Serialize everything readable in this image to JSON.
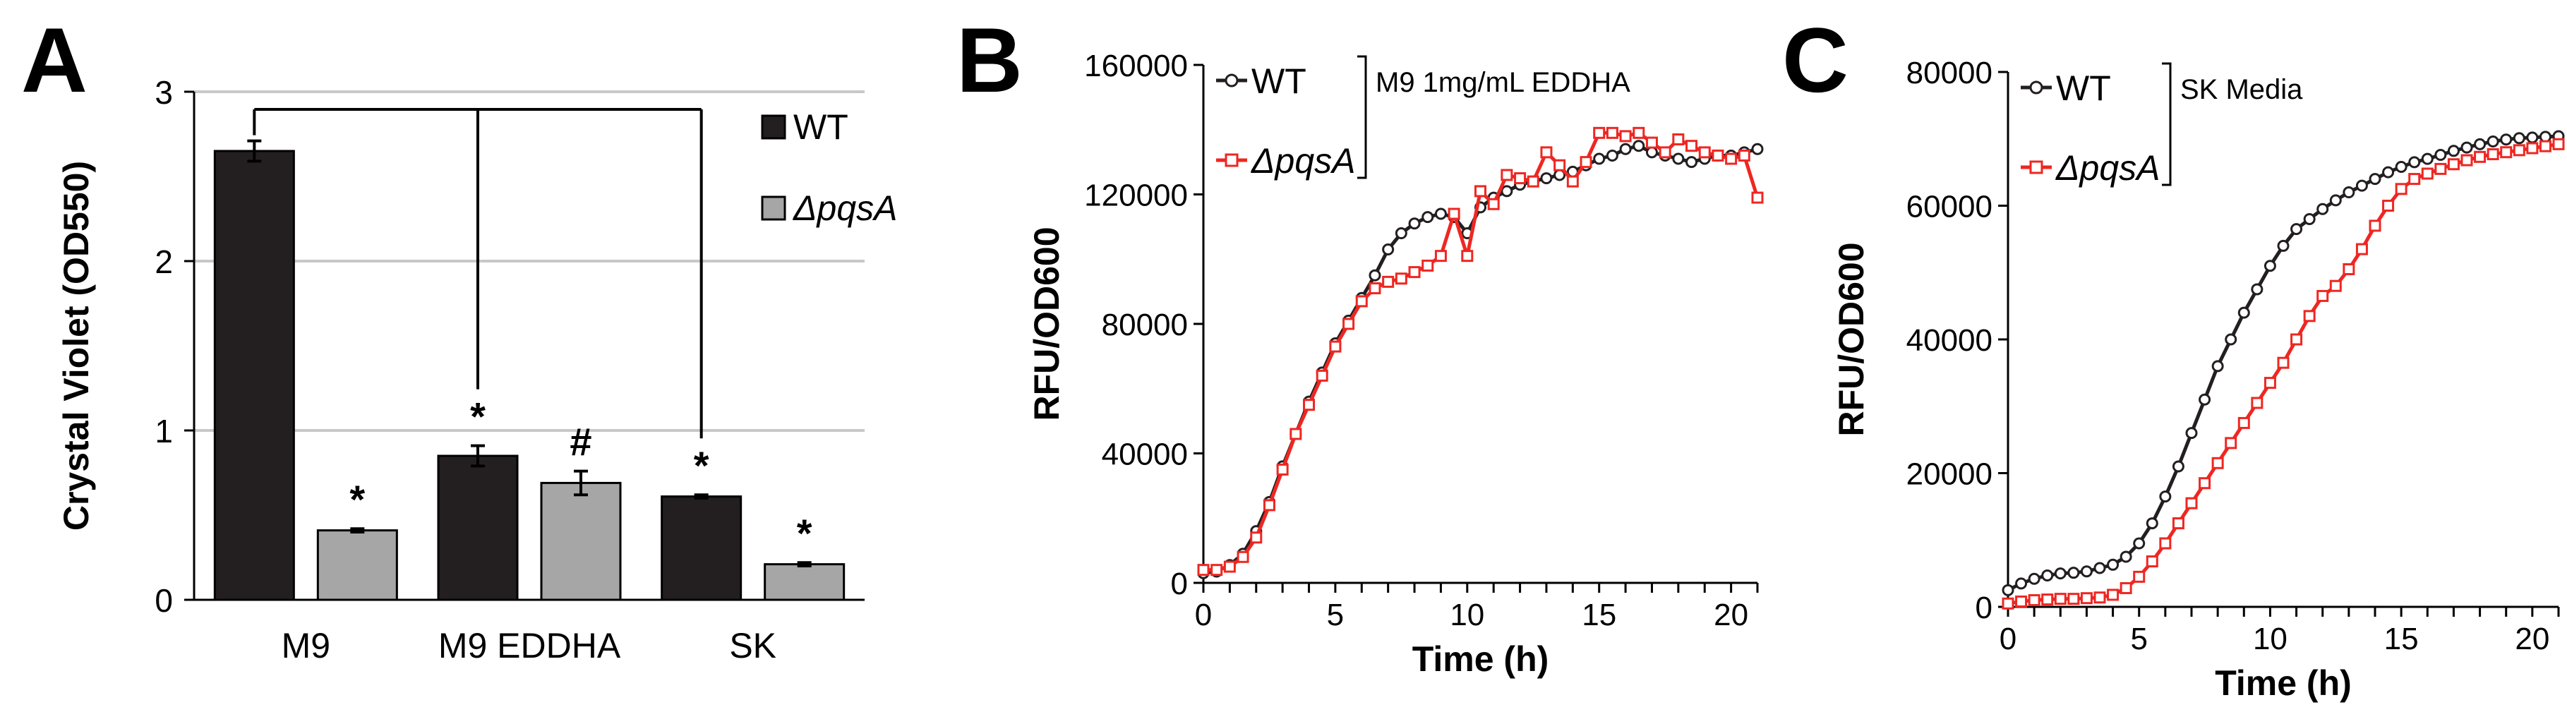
{
  "colors": {
    "wt_bar": "#231f20",
    "pqsa_bar": "#a6a6a6",
    "wt_line": "#231f20",
    "pqsa_line": "#ee2722",
    "gridline": "#c8c8c8",
    "axis": "#000000"
  },
  "chart_data": [
    {
      "panel": "A",
      "type": "bar",
      "ylabel": "Crystal Violet (OD550)",
      "xlabel": "",
      "ylim": [
        0,
        3
      ],
      "yticks": [
        0,
        1,
        2,
        3
      ],
      "ytick_labels": [
        "0",
        "1",
        "2",
        "3"
      ],
      "grid": true,
      "categories": [
        "M9",
        "M9 EDDHA",
        "SK"
      ],
      "series": [
        {
          "name": "WT",
          "values": [
            2.65,
            0.85,
            0.61
          ],
          "errors": [
            0.06,
            0.06,
            0.01
          ]
        },
        {
          "name": "ΔpqsA",
          "values": [
            0.41,
            0.69,
            0.21
          ],
          "errors": [
            0.01,
            0.07,
            0.01
          ]
        }
      ],
      "annotations": [
        {
          "series": 1,
          "category": 0,
          "text": "*"
        },
        {
          "series": 0,
          "category": 1,
          "text": "*"
        },
        {
          "series": 1,
          "category": 1,
          "text": "#"
        },
        {
          "series": 0,
          "category": 2,
          "text": "*"
        },
        {
          "series": 1,
          "category": 2,
          "text": "*"
        }
      ],
      "comparison_bracket": {
        "from": {
          "series": 0,
          "category": 0
        },
        "to": [
          {
            "series": 0,
            "category": 1
          },
          {
            "series": 0,
            "category": 2
          }
        ]
      },
      "legend": [
        "WT",
        "ΔpqsA"
      ],
      "legend_position": "top-right"
    },
    {
      "panel": "B",
      "type": "line",
      "xlabel": "Time (h)",
      "ylabel": "RFU/OD600",
      "xlim": [
        0,
        21
      ],
      "ylim": [
        0,
        160000
      ],
      "xticks": [
        0,
        5,
        10,
        15,
        20
      ],
      "xtick_labels": [
        "0",
        "5",
        "10",
        "15",
        "20"
      ],
      "yticks": [
        0,
        40000,
        80000,
        120000,
        160000
      ],
      "ytick_labels": [
        "0",
        "40000",
        "80000",
        "120000",
        "160000"
      ],
      "legend_note": "M9 1mg/mL EDDHA",
      "legend_position": "top-left",
      "series": [
        {
          "name": "WT",
          "x": [
            0,
            0.5,
            1,
            1.5,
            2,
            2.5,
            3,
            3.5,
            4,
            4.5,
            5,
            5.5,
            6,
            6.5,
            7,
            7.5,
            8,
            8.5,
            9,
            9.5,
            10,
            10.5,
            11,
            11.5,
            12,
            12.5,
            13,
            13.5,
            14,
            14.5,
            15,
            15.5,
            16,
            16.5,
            17,
            17.5,
            18,
            18.5,
            19,
            19.5,
            20,
            20.5,
            21
          ],
          "y": [
            3000,
            3500,
            5500,
            9000,
            16000,
            25000,
            36000,
            46000,
            56000,
            65000,
            74000,
            81000,
            88000,
            95000,
            103000,
            108000,
            111000,
            113000,
            114000,
            113000,
            108000,
            116000,
            119000,
            121000,
            123000,
            124000,
            125000,
            126000,
            127000,
            129000,
            131000,
            132000,
            134000,
            135000,
            133000,
            132000,
            131000,
            130000,
            131000,
            132000,
            132000,
            133000,
            134000
          ]
        },
        {
          "name": "ΔpqsA",
          "x": [
            0,
            0.5,
            1,
            1.5,
            2,
            2.5,
            3,
            3.5,
            4,
            4.5,
            5,
            5.5,
            6,
            6.5,
            7,
            7.5,
            8,
            8.5,
            9,
            9.5,
            10,
            10.5,
            11,
            11.5,
            12,
            12.5,
            13,
            13.5,
            14,
            14.5,
            15,
            15.5,
            16,
            16.5,
            17,
            17.5,
            18,
            18.5,
            19,
            19.5,
            20,
            20.5,
            21
          ],
          "y": [
            4000,
            4000,
            5000,
            8000,
            14000,
            24000,
            35000,
            46000,
            55000,
            64000,
            73000,
            80000,
            87000,
            91000,
            93000,
            94000,
            96000,
            98000,
            101000,
            114000,
            101000,
            121000,
            117000,
            126000,
            125000,
            124000,
            133000,
            129000,
            124000,
            130000,
            139000,
            139000,
            138000,
            139000,
            136000,
            133000,
            137000,
            135000,
            133000,
            132000,
            131000,
            132000,
            119000
          ]
        }
      ]
    },
    {
      "panel": "C",
      "type": "line",
      "xlabel": "Time (h)",
      "ylabel": "RFU/OD600",
      "xlim": [
        0,
        21
      ],
      "ylim": [
        0,
        80000
      ],
      "xticks": [
        0,
        5,
        10,
        15,
        20
      ],
      "xtick_labels": [
        "0",
        "5",
        "10",
        "15",
        "20"
      ],
      "yticks": [
        0,
        20000,
        40000,
        60000,
        80000
      ],
      "ytick_labels": [
        "0",
        "20000",
        "40000",
        "60000",
        "80000"
      ],
      "legend_note": "SK Media",
      "legend_position": "top-left",
      "series": [
        {
          "name": "WT",
          "x": [
            0,
            0.5,
            1,
            1.5,
            2,
            2.5,
            3,
            3.5,
            4,
            4.5,
            5,
            5.5,
            6,
            6.5,
            7,
            7.5,
            8,
            8.5,
            9,
            9.5,
            10,
            10.5,
            11,
            11.5,
            12,
            12.5,
            13,
            13.5,
            14,
            14.5,
            15,
            15.5,
            16,
            16.5,
            17,
            17.5,
            18,
            18.5,
            19,
            19.5,
            20,
            20.5,
            21
          ],
          "y": [
            2500,
            3500,
            4200,
            4700,
            5000,
            5100,
            5300,
            5800,
            6300,
            7500,
            9500,
            12500,
            16500,
            21000,
            26000,
            31000,
            36000,
            40000,
            44000,
            47500,
            51000,
            54000,
            56500,
            58000,
            59500,
            60800,
            62000,
            63000,
            64000,
            65000,
            65800,
            66500,
            67000,
            67600,
            68200,
            68700,
            69200,
            69600,
            69900,
            70100,
            70200,
            70300,
            70400
          ]
        },
        {
          "name": "ΔpqsA",
          "x": [
            0,
            0.5,
            1,
            1.5,
            2,
            2.5,
            3,
            3.5,
            4,
            4.5,
            5,
            5.5,
            6,
            6.5,
            7,
            7.5,
            8,
            8.5,
            9,
            9.5,
            10,
            10.5,
            11,
            11.5,
            12,
            12.5,
            13,
            13.5,
            14,
            14.5,
            15,
            15.5,
            16,
            16.5,
            17,
            17.5,
            18,
            18.5,
            19,
            19.5,
            20,
            20.5,
            21
          ],
          "y": [
            500,
            800,
            1000,
            1100,
            1200,
            1200,
            1300,
            1400,
            1800,
            2800,
            4500,
            6800,
            9500,
            12500,
            15500,
            18500,
            21500,
            24500,
            27500,
            30500,
            33500,
            36500,
            40000,
            43500,
            46500,
            48000,
            50500,
            53500,
            57000,
            60000,
            62500,
            64000,
            64800,
            65500,
            66200,
            66800,
            67300,
            67700,
            68000,
            68300,
            68600,
            68900,
            69200
          ]
        }
      ]
    }
  ],
  "panel_labels": [
    "A",
    "B",
    "C"
  ]
}
